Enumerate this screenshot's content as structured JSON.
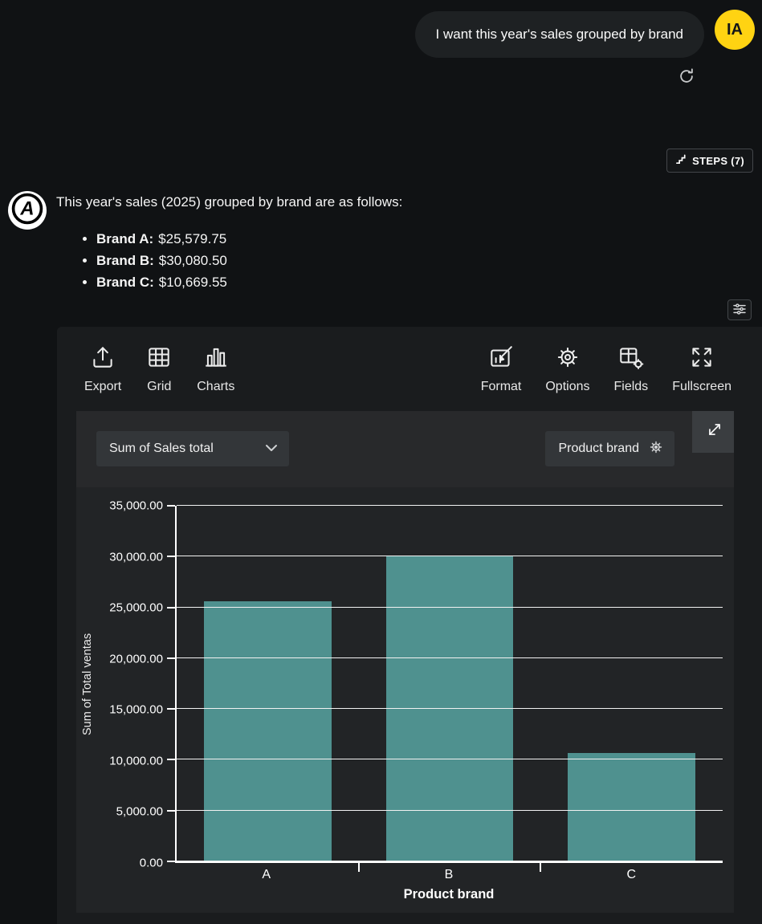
{
  "chat": {
    "user_message": "I want this year's sales grouped by brand",
    "user_avatar_initials": "IA",
    "steps_label": "STEPS (7)",
    "assistant_intro": "This year's sales (2025) grouped by brand are as follows:",
    "brands": [
      {
        "label": "Brand A:",
        "value": "$25,579.75"
      },
      {
        "label": "Brand B:",
        "value": "$30,080.50"
      },
      {
        "label": "Brand C:",
        "value": "$10,669.55"
      }
    ]
  },
  "toolbar": {
    "export_label": "Export",
    "grid_label": "Grid",
    "charts_label": "Charts",
    "format_label": "Format",
    "options_label": "Options",
    "fields_label": "Fields",
    "fullscreen_label": "Fullscreen"
  },
  "pivot": {
    "measure_selected": "Sum of Sales total",
    "column_field": "Product brand"
  },
  "colors": {
    "bar_teal": "#4f918f",
    "avatar_yellow": "#ffd312"
  },
  "chart_data": {
    "type": "bar",
    "categories": [
      "A",
      "B",
      "C"
    ],
    "values": [
      25579.75,
      30080.5,
      10669.55
    ],
    "title": "",
    "xlabel": "Product brand",
    "ylabel": "Sum of Total ventas",
    "ylim": [
      0,
      35000
    ],
    "yticks": [
      0,
      5000,
      10000,
      15000,
      20000,
      25000,
      30000,
      35000
    ],
    "ytick_labels": [
      "0.00",
      "5,000.00",
      "10,000.00",
      "15,000.00",
      "20,000.00",
      "25,000.00",
      "30,000.00",
      "35,000.00"
    ],
    "bar_color": "#4f918f",
    "grid": true,
    "legend": false
  }
}
